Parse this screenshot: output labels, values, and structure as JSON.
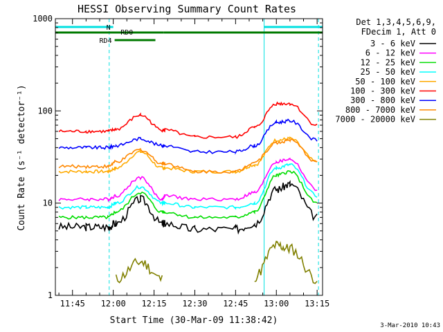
{
  "chart_data": {
    "type": "line",
    "title": "HESSI Observing Summary Count Rates",
    "xlabel": "Start Time (30-Mar-09 11:38:42)",
    "ylabel": "Count Rate (s⁻¹ detector⁻¹)",
    "xlim": [
      "11:38:42",
      "13:17:00"
    ],
    "ylim": [
      1,
      1000
    ],
    "y_scale": "log",
    "x_ticks": [
      "11:45",
      "12:00",
      "12:15",
      "12:30",
      "12:45",
      "13:00",
      "13:15"
    ],
    "y_ticks": [
      "1",
      "10",
      "100",
      "1000"
    ],
    "footer": "3-Mar-2010 10:43",
    "legend": {
      "position": "right",
      "header": [
        "Det 1,3,4,5,6,9,",
        "FDecim 1, Att 0"
      ]
    },
    "flag_bars": [
      {
        "label": "N",
        "color": "#00e0e0",
        "segments": [
          [
            "11:38:42",
            "12:00:00"
          ],
          [
            "12:55:30",
            "13:17:00"
          ]
        ]
      },
      {
        "label": "RD0",
        "color": "#007a00",
        "segments": [
          [
            "11:38:42",
            "12:18:30"
          ],
          [
            "12:18:30",
            "13:17:00"
          ]
        ]
      },
      {
        "label": "RD4",
        "color": "#007a00",
        "segments": [
          [
            "12:00:30",
            "12:15:30"
          ]
        ]
      }
    ],
    "vertical_lines": [
      {
        "time": "11:58:30",
        "style": "dashed",
        "color": "#00e0e0"
      },
      {
        "time": "12:55:30",
        "style": "solid",
        "color": "#00e0e0"
      },
      {
        "time": "13:15:30",
        "style": "dashed",
        "color": "#00e0e0"
      }
    ],
    "x": [
      "11:40",
      "11:50",
      "11:58",
      "12:01",
      "12:10",
      "12:18",
      "12:19",
      "12:30",
      "12:45",
      "12:52",
      "13:00",
      "13:05",
      "13:15"
    ],
    "series": [
      {
        "name": "3 - 6 keV",
        "color": "#000000",
        "values": [
          5.5,
          5.5,
          5.5,
          6,
          11,
          6,
          6,
          5.2,
          5.2,
          6,
          14,
          16,
          7
        ]
      },
      {
        "name": "6 - 12 keV",
        "color": "#ff00ff",
        "values": [
          11,
          11,
          11,
          12,
          19,
          11,
          12,
          11,
          11,
          13,
          28,
          30,
          14
        ]
      },
      {
        "name": "12 - 25 keV",
        "color": "#00dd00",
        "values": [
          7,
          7,
          7,
          8,
          13,
          8,
          8,
          7,
          7,
          8,
          20,
          22,
          10
        ]
      },
      {
        "name": "25 - 50 keV",
        "color": "#00ffff",
        "values": [
          9,
          9,
          9,
          10,
          15,
          10,
          10,
          9,
          9,
          10,
          24,
          26,
          12
        ]
      },
      {
        "name": "50 - 100 keV",
        "color": "#ffaa00",
        "values": [
          22,
          22,
          22,
          24,
          36,
          24,
          24,
          22,
          22,
          26,
          48,
          50,
          28
        ]
      },
      {
        "name": "100 - 300 keV",
        "color": "#ff0000",
        "values": [
          60,
          60,
          60,
          63,
          90,
          62,
          62,
          52,
          52,
          66,
          120,
          120,
          70
        ]
      },
      {
        "name": "300 - 800 keV",
        "color": "#0000ff",
        "values": [
          40,
          40,
          40,
          42,
          50,
          42,
          42,
          36,
          36,
          42,
          75,
          78,
          48
        ]
      },
      {
        "name": "800 - 7000 keV",
        "color": "#ff8800",
        "values": [
          25,
          25,
          25,
          28,
          38,
          27,
          27,
          22,
          22,
          28,
          45,
          48,
          28
        ]
      },
      {
        "name": "7000 - 20000 keV",
        "color": "#808000",
        "values": [
          null,
          null,
          null,
          1.5,
          2.3,
          1.5,
          null,
          null,
          null,
          1.6,
          3.5,
          3.2,
          1.5
        ]
      }
    ]
  }
}
